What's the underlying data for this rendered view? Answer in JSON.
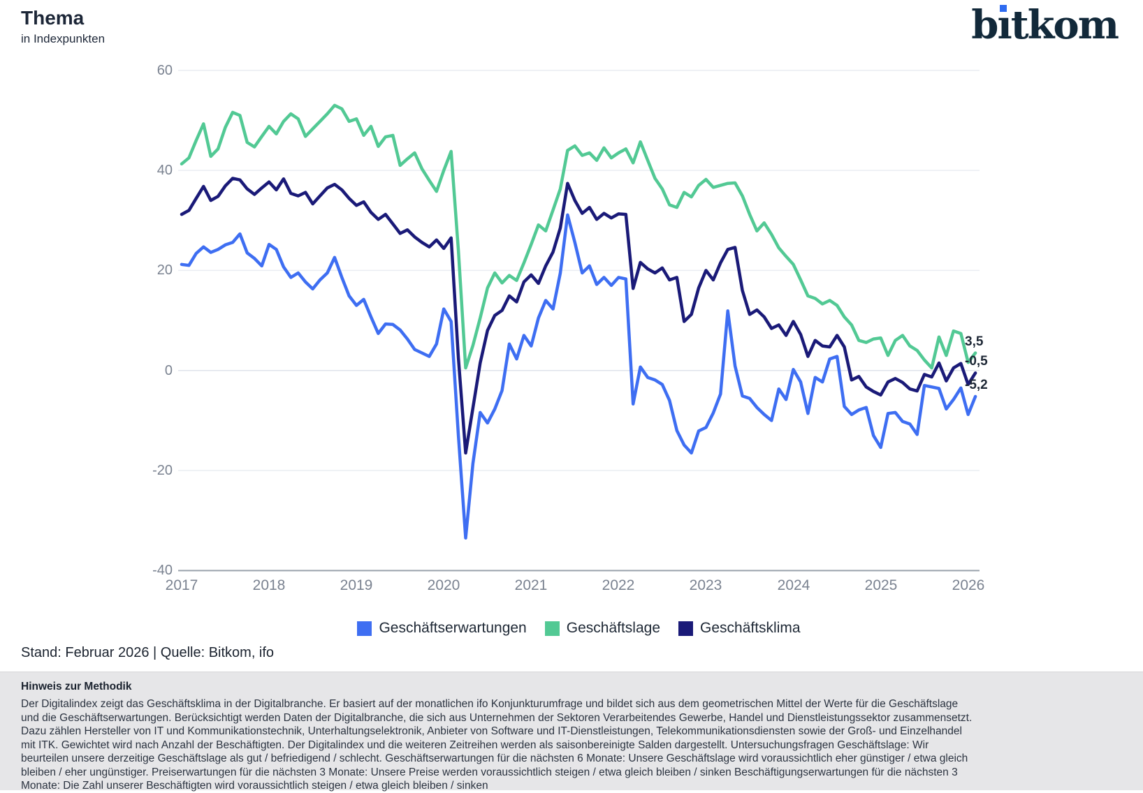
{
  "header": {
    "title": "Thema",
    "subtitle": "in Indexpunkten"
  },
  "logo": {
    "name": "bitkom",
    "pre": "b",
    "i_dotless": "ı",
    "post": "tkom",
    "dot_color": "#2e6bf0",
    "text_color": "#12293a"
  },
  "chart_data": {
    "type": "line",
    "title": "Thema",
    "ylabel": "Indexpunkte",
    "x_start": "2017-01",
    "x_end": "2026-02",
    "x_tick_labels": [
      "2017",
      "2018",
      "2019",
      "2020",
      "2021",
      "2022",
      "2023",
      "2024",
      "2025",
      "2026"
    ],
    "y_ticks": [
      60,
      40,
      20,
      0,
      -20,
      -40
    ],
    "ylim": [
      -40,
      60
    ],
    "grid": true,
    "legend_position": "bottom",
    "series": [
      {
        "name": "Geschäftserwartungen",
        "color": "#3e6ef2",
        "end_label": "-5,2",
        "values": [
          21.2,
          21.0,
          23.4,
          24.7,
          23.6,
          24.2,
          25.1,
          25.6,
          27.3,
          23.5,
          22.4,
          20.9,
          25.2,
          24.2,
          20.7,
          18.6,
          19.5,
          17.7,
          16.3,
          18.1,
          19.5,
          22.6,
          18.6,
          14.9,
          13.0,
          14.2,
          10.7,
          7.4,
          9.3,
          9.2,
          8.1,
          6.3,
          4.2,
          3.5,
          2.8,
          5.3,
          12.3,
          9.8,
          -13.0,
          -33.5,
          -18.6,
          -8.4,
          -10.5,
          -7.7,
          -4.0,
          5.3,
          2.3,
          7.0,
          4.9,
          10.5,
          14.0,
          12.3,
          19.5,
          31.1,
          25.6,
          19.5,
          20.9,
          17.2,
          18.6,
          17.0,
          18.6,
          18.3,
          -6.7,
          0.7,
          -1.4,
          -1.9,
          -2.8,
          -6.0,
          -12.0,
          -14.9,
          -16.5,
          -12.1,
          -11.4,
          -8.5,
          -4.7,
          11.9,
          0.9,
          -5.1,
          -5.6,
          -7.4,
          -8.8,
          -10.0,
          -3.7,
          -5.8,
          0.2,
          -2.3,
          -8.6,
          -1.4,
          -2.3,
          2.3,
          2.8,
          -7.2,
          -8.8,
          -7.9,
          -7.4,
          -13.0,
          -15.4,
          -8.6,
          -8.4,
          -10.2,
          -10.7,
          -12.8,
          -3.0,
          -3.3,
          -3.6,
          -7.7,
          -5.8,
          -3.5,
          -8.8,
          -5.2
        ]
      },
      {
        "name": "Geschäftslage",
        "color": "#52c994",
        "end_label": "3,5",
        "values": [
          41.3,
          42.5,
          46.0,
          49.3,
          42.8,
          44.3,
          48.6,
          51.6,
          51.0,
          45.6,
          44.7,
          46.8,
          48.8,
          47.3,
          49.8,
          51.3,
          50.3,
          46.8,
          48.3,
          49.8,
          51.3,
          53.0,
          52.3,
          49.8,
          50.3,
          47.0,
          48.8,
          44.8,
          46.7,
          47.0,
          41.0,
          42.3,
          43.5,
          40.3,
          38.0,
          35.8,
          40.0,
          43.8,
          24.0,
          0.5,
          5.0,
          10.5,
          16.5,
          19.5,
          17.5,
          19.0,
          18.0,
          21.5,
          25.2,
          29.1,
          27.9,
          32.1,
          36.3,
          44.0,
          44.9,
          43.0,
          43.5,
          42.0,
          44.5,
          42.5,
          43.5,
          44.3,
          41.5,
          45.7,
          42.0,
          38.4,
          36.3,
          33.1,
          32.6,
          35.6,
          34.7,
          37.0,
          38.2,
          36.6,
          37.0,
          37.4,
          37.5,
          34.9,
          31.2,
          27.9,
          29.5,
          27.2,
          24.5,
          22.8,
          21.2,
          18.1,
          14.9,
          14.4,
          13.3,
          14.0,
          13.0,
          10.7,
          9.1,
          6.0,
          5.6,
          6.3,
          6.5,
          3.0,
          6.0,
          7.0,
          4.9,
          4.0,
          2.1,
          0.5,
          6.7,
          3.0,
          7.9,
          7.4,
          1.6,
          3.5
        ]
      },
      {
        "name": "Geschäftsklima",
        "color": "#1a1a78",
        "end_label": "-0,5",
        "values": [
          31.2,
          32.0,
          34.4,
          36.8,
          34.0,
          34.8,
          36.9,
          38.4,
          38.1,
          36.3,
          35.2,
          36.5,
          37.7,
          36.1,
          38.3,
          35.4,
          34.9,
          35.6,
          33.3,
          34.9,
          36.5,
          37.2,
          36.1,
          34.4,
          33.0,
          33.7,
          31.6,
          30.2,
          31.2,
          29.3,
          27.4,
          28.1,
          26.7,
          25.6,
          24.7,
          26.1,
          24.4,
          26.5,
          2.5,
          -16.5,
          -7.5,
          1.5,
          8.0,
          11.0,
          12.0,
          14.9,
          13.7,
          17.7,
          19.1,
          17.4,
          20.9,
          23.7,
          28.5,
          37.4,
          34.0,
          31.4,
          32.6,
          30.2,
          31.4,
          30.5,
          31.3,
          31.2,
          16.4,
          21.6,
          20.3,
          19.5,
          20.5,
          18.1,
          18.6,
          9.8,
          11.2,
          16.5,
          20.0,
          18.1,
          21.5,
          24.2,
          24.6,
          16.0,
          11.2,
          12.1,
          10.7,
          8.4,
          9.1,
          7.0,
          9.8,
          7.2,
          2.8,
          6.0,
          4.9,
          4.7,
          7.0,
          4.7,
          -1.9,
          -1.2,
          -3.3,
          -4.2,
          -4.9,
          -2.3,
          -1.6,
          -2.4,
          -3.7,
          -4.1,
          -0.8,
          -1.3,
          1.5,
          -2.1,
          0.5,
          1.4,
          -2.8,
          -0.5
        ]
      }
    ]
  },
  "footer": {
    "stand": "Stand: Februar 2026 | Quelle: Bitkom, ifo"
  },
  "methodology": {
    "heading": "Hinweis zur Methodik",
    "body": "Der Digitalindex zeigt das Geschäftsklima in der Digitalbranche. Er basiert auf der monatlichen ifo Konjunkturumfrage und bildet sich aus dem geometrischen Mittel der Werte für die Geschäftslage und die Geschäftserwartungen. Berücksichtigt werden Daten der Digitalbranche, die sich aus Unternehmen der Sektoren Verarbeitendes Gewerbe, Handel und Dienstleistungssektor zusammensetzt. Dazu zählen Hersteller von IT und Kommunikationstechnik, Unterhaltungselektronik, Anbieter von Software und IT-Dienstleistungen, Telekommunikationsdiensten sowie der Groß- und Einzelhandel mit ITK. Gewichtet wird nach Anzahl der Beschäftigten. Der Digitalindex und die weiteren Zeitreihen werden als saisonbereinigte Salden dargestellt. Untersuchungsfragen Geschäftslage: Wir beurteilen unsere derzeitige Geschäftslage als gut / befriedigend / schlecht. Geschäftserwartungen für die nächsten 6 Monate: Unsere Geschäftslage wird voraussichtlich eher günstiger / etwa gleich bleiben / eher ungünstiger. Preiserwartungen für die nächsten 3 Monate: Unsere Preise werden voraussichtlich steigen / etwa gleich bleiben / sinken Beschäftigungserwartungen für die nächsten 3 Monate: Die Zahl unserer Beschäftigten wird voraussichtlich steigen / etwa gleich bleiben / sinken"
  }
}
